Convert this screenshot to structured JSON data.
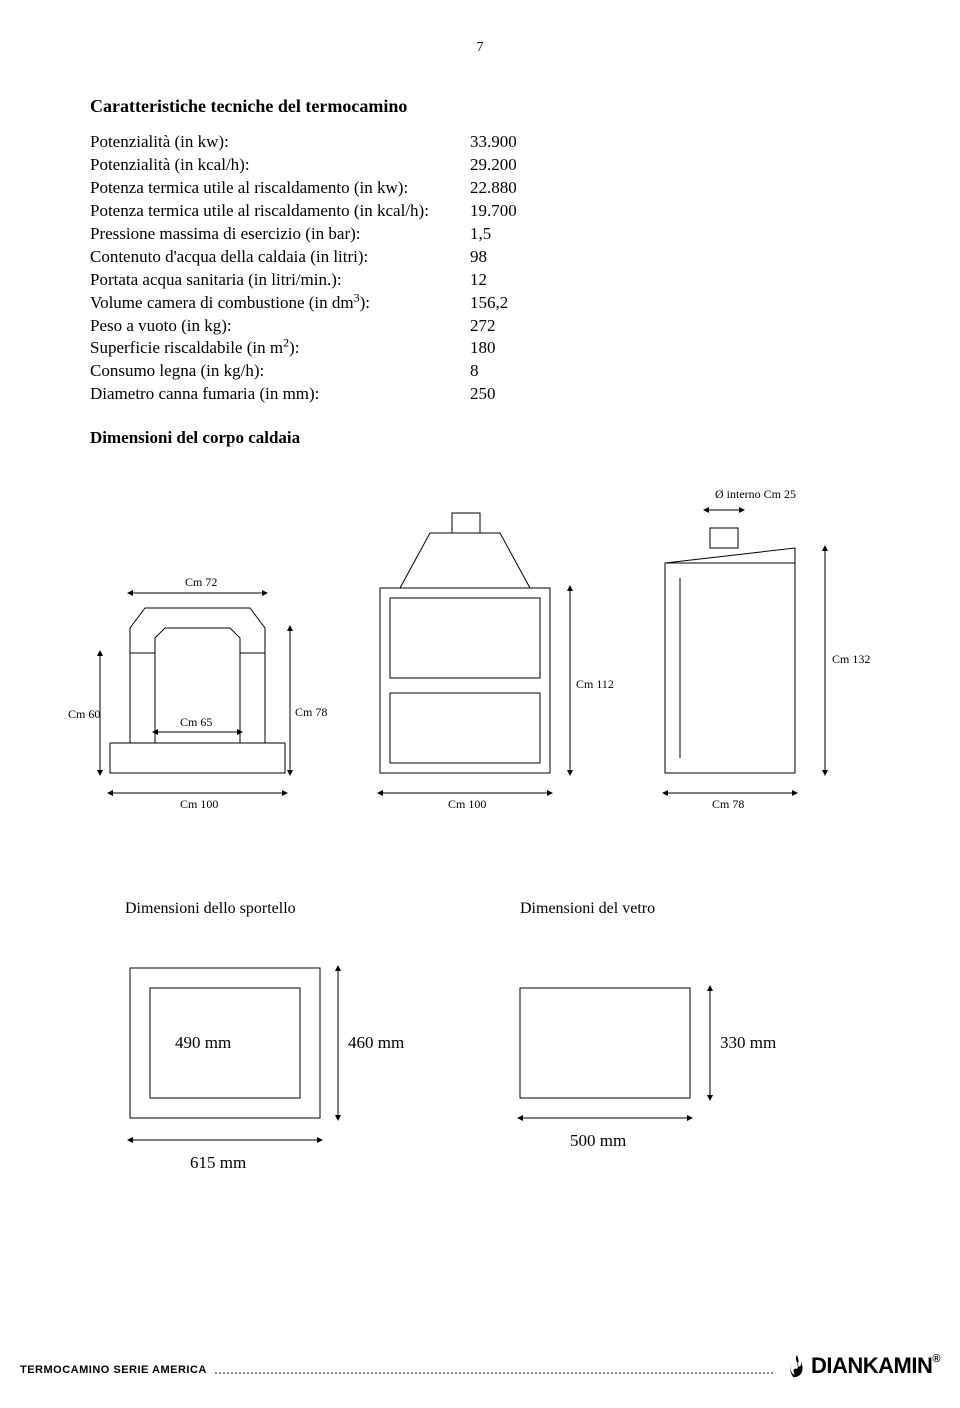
{
  "page_number": "7",
  "title": "Caratteristiche tecniche del termocamino",
  "specs": {
    "rows": [
      {
        "label": "Potenzialità (in kw):",
        "value": "33.900"
      },
      {
        "label": "Potenzialità (in kcal/h):",
        "value": "29.200"
      },
      {
        "label": "Potenza termica utile al riscaldamento (in kw):",
        "value": "22.880"
      },
      {
        "label": "Potenza termica utile al riscaldamento (in kcal/h):",
        "value": "19.700"
      },
      {
        "label": "Pressione massima di esercizio (in bar):",
        "value": "1,5"
      },
      {
        "label": "Contenuto d'acqua della caldaia (in litri):",
        "value": "98"
      },
      {
        "label": "Portata acqua sanitaria (in litri/min.):",
        "value": "12"
      },
      {
        "label_html": "Volume camera di combustione (in dm<sup>3</sup>):",
        "value": "156,2"
      },
      {
        "label": "Peso a vuoto (in kg):",
        "value": "272"
      },
      {
        "label_html": "Superficie riscaldabile (in m<sup>2</sup>):",
        "value": "180"
      },
      {
        "label": "Consumo legna (in kg/h):",
        "value": "8"
      },
      {
        "label": "Diametro canna fumaria (in mm):",
        "value": "250"
      }
    ]
  },
  "dimensions_title": "Dimensioni del corpo caldaia",
  "diagram": {
    "stroke": "#000000",
    "stroke_width": 1,
    "labels": {
      "cm72": "Cm 72",
      "cm60": "Cm 60",
      "cm65": "Cm 65",
      "cm78": "Cm 78",
      "cm100_a": "Cm 100",
      "cm100_b": "Cm 100",
      "cm78_b": "Cm 78",
      "cm112": "Cm 112",
      "cm132": "Cm 132",
      "diameter": "Ø interno Cm 25"
    },
    "sportello_title": "Dimensioni dello sportello",
    "vetro_title": "Dimensioni del vetro",
    "mm_labels": {
      "m490": "490 mm",
      "m460": "460 mm",
      "m615": "615 mm",
      "m330": "330 mm",
      "m500": "500 mm"
    }
  },
  "footer": {
    "series": "TERMOCAMINO SERIE AMERICA",
    "brand": "DIANKAMIN"
  }
}
